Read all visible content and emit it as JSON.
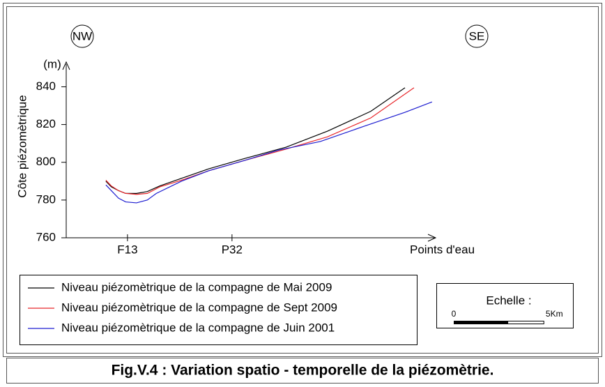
{
  "chart_data": {
    "type": "line",
    "title": "Fig.V.4 : Variation spatio - temporelle de la piézomètrie.",
    "ylabel": "Côte piézomètrique",
    "yunit": "(m)",
    "xlabel": "Points d'eau",
    "annotations": [
      "NW",
      "SE"
    ],
    "xlim": [
      0,
      20.5
    ],
    "xticks": [
      {
        "value": 3.4,
        "label": "F13"
      },
      {
        "value": 9.2,
        "label": "P32"
      }
    ],
    "ylim": [
      760,
      852
    ],
    "yticks": [
      760,
      780,
      800,
      820,
      840
    ],
    "series": [
      {
        "name": "Niveau piézomètrique de la compagne de Mai 2009",
        "color": "#000000",
        "x": [
          2.2,
          2.5,
          2.9,
          3.3,
          3.9,
          4.5,
          5.2,
          6.4,
          7.9,
          9.9,
          12.2,
          14.5,
          16.9,
          18.8
        ],
        "values": [
          790,
          787,
          785,
          783.5,
          783.5,
          784.5,
          787.5,
          791.5,
          796.5,
          802,
          808,
          816.5,
          827,
          839.5
        ]
      },
      {
        "name": "Niveau piézomètrique de la compagne de Sept 2009",
        "color": "#e8262a",
        "x": [
          2.2,
          2.5,
          2.9,
          3.3,
          3.9,
          4.5,
          5.2,
          6.4,
          7.9,
          9.9,
          12.2,
          14.5,
          16.9,
          19.3
        ],
        "values": [
          790.5,
          787.5,
          785,
          783.5,
          783,
          783.5,
          787,
          790.5,
          795.5,
          801,
          807,
          813.5,
          823.5,
          839.5
        ]
      },
      {
        "name": "Niveau piézomètrique de la compagne de Juin 2001",
        "color": "#1c1cd0",
        "x": [
          2.2,
          2.5,
          2.9,
          3.3,
          3.9,
          4.5,
          5.0,
          6.4,
          7.9,
          9.9,
          11.8,
          14.1,
          16.5,
          18.8,
          20.3
        ],
        "values": [
          788,
          785,
          781,
          779,
          778.5,
          780,
          783.5,
          790,
          795.5,
          801,
          806.5,
          811,
          819,
          826.5,
          832
        ]
      }
    ],
    "scale_bar": {
      "label": "Echelle :",
      "ticks": [
        0,
        {
          "value": 5,
          "label": "5Km"
        }
      ]
    }
  }
}
